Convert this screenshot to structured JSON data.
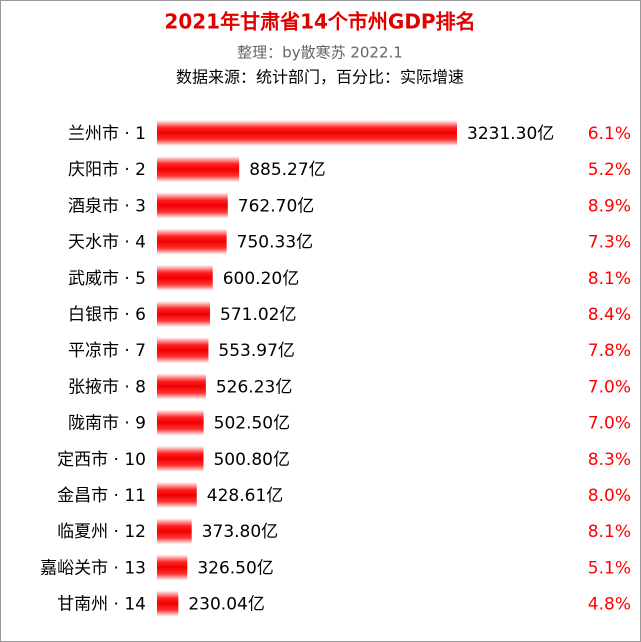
{
  "chart_data": {
    "type": "bar",
    "orientation": "horizontal",
    "title": "2021年甘肃省14个市州GDP排名",
    "subtitle": "整理：by散寒苏  2022.1",
    "caption": "数据来源：统计部门，百分比：实际增速",
    "categories": [
      "兰州市 · 1",
      "庆阳市 · 2",
      "酒泉市 · 3",
      "天水市 · 4",
      "武威市 · 5",
      "白银市 · 6",
      "平凉市 · 7",
      "张掖市 · 8",
      "陇南市 · 9",
      "定西市 · 10",
      "金昌市 · 11",
      "临夏州 · 12",
      "嘉峪关市 · 13",
      "甘南州 · 14"
    ],
    "values": [
      3231.3,
      885.27,
      762.7,
      750.33,
      600.2,
      571.02,
      553.97,
      526.23,
      502.5,
      500.8,
      428.61,
      373.8,
      326.5,
      230.04
    ],
    "value_labels": [
      "3231.30亿",
      "885.27亿",
      "762.70亿",
      "750.33亿",
      "600.20亿",
      "571.02亿",
      "553.97亿",
      "526.23亿",
      "502.50亿",
      "500.80亿",
      "428.61亿",
      "373.80亿",
      "326.50亿",
      "230.04亿"
    ],
    "growth_labels": [
      "6.1%",
      "5.2%",
      "8.9%",
      "7.3%",
      "8.1%",
      "8.4%",
      "7.8%",
      "7.0%",
      "7.0%",
      "8.3%",
      "8.0%",
      "8.1%",
      "5.1%",
      "4.8%"
    ],
    "color": "#ff0000"
  }
}
